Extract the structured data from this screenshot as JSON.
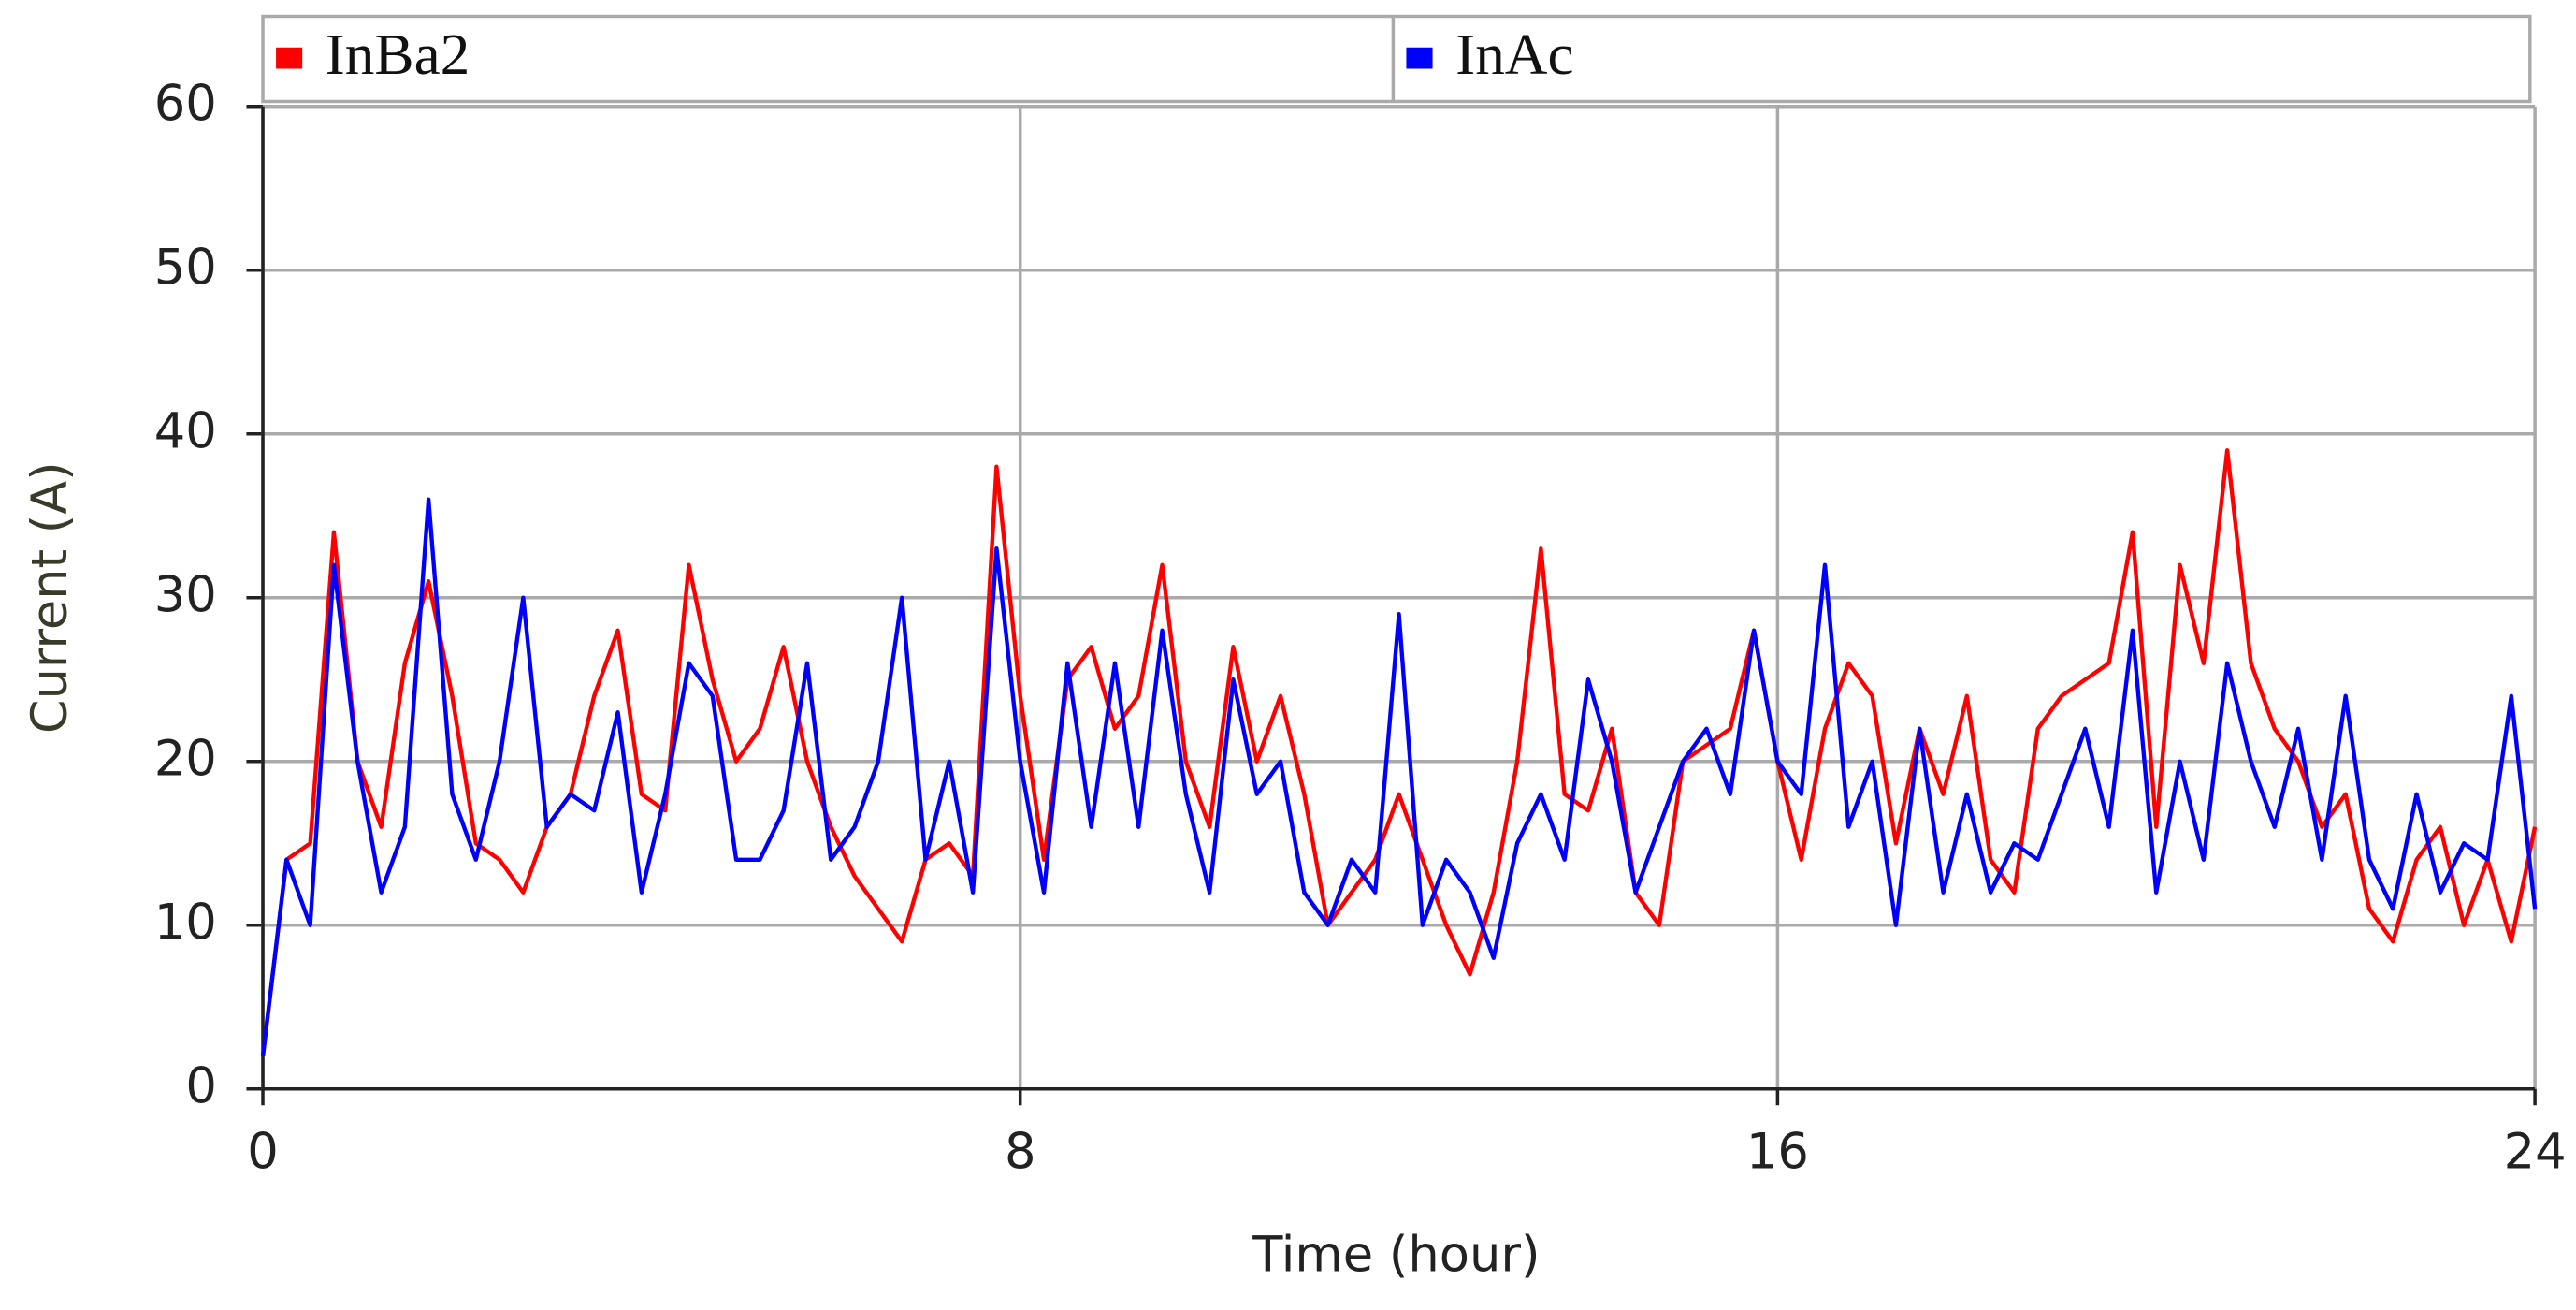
{
  "chart_data": {
    "type": "line",
    "x_label": "Time (hour)",
    "y_label": "Current (A)",
    "x": [
      0,
      0.25,
      0.5,
      0.75,
      1,
      1.25,
      1.5,
      1.75,
      2,
      2.25,
      2.5,
      2.75,
      3,
      3.25,
      3.5,
      3.75,
      4,
      4.25,
      4.5,
      4.75,
      5,
      5.25,
      5.5,
      5.75,
      6,
      6.25,
      6.5,
      6.75,
      7,
      7.25,
      7.5,
      7.75,
      8,
      8.25,
      8.5,
      8.75,
      9,
      9.25,
      9.5,
      9.75,
      10,
      10.25,
      10.5,
      10.75,
      11,
      11.25,
      11.5,
      11.75,
      12,
      12.25,
      12.5,
      12.75,
      13,
      13.25,
      13.5,
      13.75,
      14,
      14.25,
      14.5,
      14.75,
      15,
      15.25,
      15.5,
      15.75,
      16,
      16.25,
      16.5,
      16.75,
      17,
      17.25,
      17.5,
      17.75,
      18,
      18.25,
      18.5,
      18.75,
      19,
      19.25,
      19.5,
      19.75,
      20,
      20.25,
      20.5,
      20.75,
      21,
      21.25,
      21.5,
      21.75,
      22,
      22.25,
      22.5,
      22.75,
      23,
      23.25,
      23.5,
      23.75,
      24
    ],
    "series": [
      {
        "name": "InBa2",
        "color": "#ff0000",
        "values": [
          2,
          14,
          15,
          34,
          20,
          16,
          26,
          31,
          24,
          15,
          14,
          12,
          16,
          18,
          24,
          28,
          18,
          17,
          32,
          25,
          20,
          22,
          27,
          20,
          16,
          13,
          11,
          9,
          14,
          15,
          13,
          38,
          24,
          14,
          25,
          27,
          22,
          24,
          32,
          20,
          16,
          27,
          20,
          24,
          18,
          10,
          12,
          14,
          18,
          14,
          10,
          7,
          12,
          20,
          33,
          18,
          17,
          22,
          12,
          10,
          20,
          21,
          22,
          28,
          20,
          14,
          22,
          26,
          24,
          15,
          22,
          18,
          24,
          14,
          12,
          22,
          24,
          25,
          26,
          34,
          16,
          32,
          26,
          39,
          26,
          22,
          20,
          16,
          18,
          11,
          9,
          14,
          16,
          10,
          14,
          9,
          16
        ]
      },
      {
        "name": "InAc",
        "color": "#0000ff",
        "values": [
          2,
          14,
          10,
          32,
          20,
          12,
          16,
          36,
          18,
          14,
          20,
          30,
          16,
          18,
          17,
          23,
          12,
          18,
          26,
          24,
          14,
          14,
          17,
          26,
          14,
          16,
          20,
          30,
          14,
          20,
          12,
          33,
          20,
          12,
          26,
          16,
          26,
          16,
          28,
          18,
          12,
          25,
          18,
          20,
          12,
          10,
          14,
          12,
          29,
          10,
          14,
          12,
          8,
          15,
          18,
          14,
          25,
          20,
          12,
          16,
          20,
          22,
          18,
          28,
          20,
          18,
          32,
          16,
          20,
          10,
          22,
          12,
          18,
          12,
          15,
          14,
          18,
          22,
          16,
          28,
          12,
          20,
          14,
          26,
          20,
          16,
          22,
          14,
          24,
          14,
          11,
          18,
          12,
          15,
          14,
          24,
          11
        ]
      }
    ],
    "xlim": [
      0,
      24
    ],
    "xticks": [
      0,
      8,
      16,
      24
    ],
    "ylim": [
      0,
      60
    ],
    "yticks": [
      0,
      10,
      20,
      30,
      40,
      50,
      60
    ],
    "grid": true,
    "legend": "top"
  }
}
